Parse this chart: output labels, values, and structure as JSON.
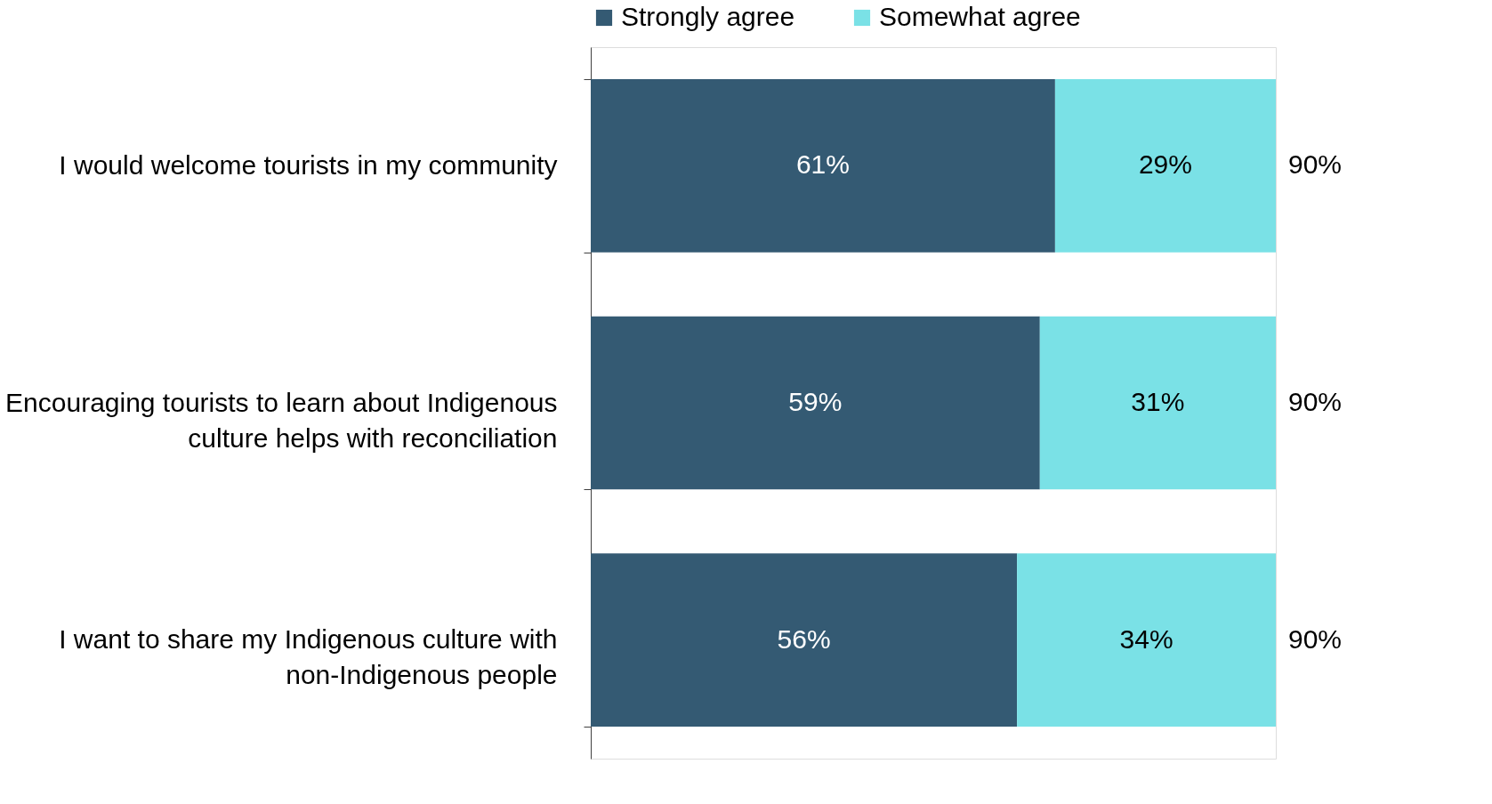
{
  "chart_data": {
    "type": "bar",
    "orientation": "horizontal",
    "stacked": true,
    "legend": "top",
    "categories": [
      "I would welcome tourists in my community",
      "Encouraging tourists to learn about Indigenous culture helps with reconciliation",
      "I want to share my Indigenous culture with non-Indigenous people"
    ],
    "series": [
      {
        "name": "Strongly agree",
        "color": "#345a73",
        "values": [
          61,
          59,
          56
        ],
        "value_labels": [
          "61%",
          "59%",
          "56%"
        ]
      },
      {
        "name": "Somewhat agree",
        "color": "#7ae1e6",
        "values": [
          29,
          31,
          34
        ],
        "value_labels": [
          "29%",
          "31%",
          "34%"
        ]
      }
    ],
    "totals": [
      "90%",
      "90%",
      "90%"
    ]
  }
}
